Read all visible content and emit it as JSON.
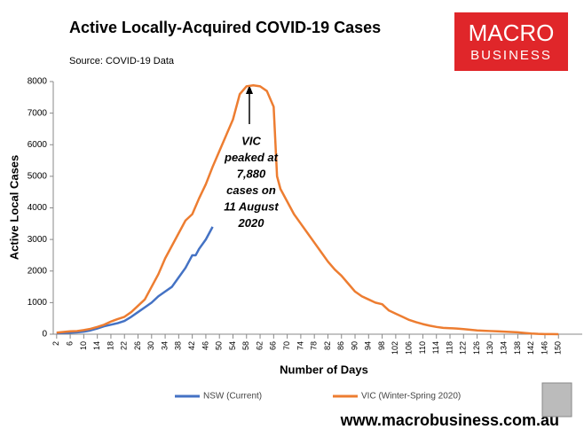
{
  "chart_data": {
    "type": "line",
    "title": "Active Locally-Acquired COVID-19 Cases",
    "subtitle": "Source: COVID-19 Data",
    "logo": [
      "MACRO",
      "BUSINESS"
    ],
    "footer": "www.macrobusiness.com.au",
    "x_label": "Number of Days",
    "y_label": "Active Local Cases",
    "annotation": [
      "VIC",
      "peaked at",
      "7,880",
      "cases on",
      "11 August",
      "2020"
    ],
    "xlim": [
      1,
      157
    ],
    "ylim": [
      0,
      8000
    ],
    "xticks": [
      2,
      6,
      10,
      14,
      18,
      22,
      26,
      30,
      34,
      38,
      42,
      46,
      50,
      54,
      58,
      62,
      66,
      70,
      74,
      78,
      82,
      86,
      90,
      94,
      98,
      102,
      106,
      110,
      114,
      118,
      122,
      126,
      130,
      134,
      138,
      142,
      146,
      150
    ],
    "yticks": [
      0,
      1000,
      2000,
      3000,
      4000,
      5000,
      6000,
      7000,
      8000
    ],
    "series": [
      {
        "name": "NSW (Current)",
        "color": "#4472c4",
        "x": [
          2,
          4,
          6,
          8,
          10,
          12,
          14,
          16,
          18,
          20,
          22,
          24,
          26,
          28,
          30,
          32,
          34,
          36,
          38,
          40,
          42,
          43,
          44,
          46,
          48
        ],
        "values": [
          30,
          40,
          50,
          60,
          80,
          120,
          180,
          250,
          300,
          350,
          420,
          550,
          700,
          850,
          1000,
          1200,
          1350,
          1500,
          1800,
          2100,
          2500,
          2500,
          2700,
          3000,
          3400
        ]
      },
      {
        "name": "VIC (Winter-Spring 2020)",
        "color": "#ed7d31",
        "x": [
          2,
          4,
          6,
          8,
          10,
          12,
          14,
          16,
          18,
          20,
          22,
          24,
          26,
          28,
          30,
          32,
          34,
          36,
          38,
          40,
          42,
          44,
          46,
          48,
          50,
          52,
          54,
          56,
          58,
          60,
          62,
          64,
          66,
          67,
          68,
          70,
          72,
          74,
          76,
          78,
          80,
          82,
          84,
          86,
          88,
          90,
          92,
          94,
          96,
          98,
          100,
          102,
          104,
          106,
          108,
          110,
          112,
          114,
          116,
          118,
          120,
          122,
          124,
          126,
          128,
          130,
          132,
          134,
          136,
          138,
          140,
          142,
          144,
          146,
          148,
          150
        ],
        "values": [
          50,
          70,
          90,
          100,
          130,
          170,
          230,
          300,
          400,
          480,
          550,
          700,
          900,
          1100,
          1500,
          1900,
          2400,
          2800,
          3200,
          3600,
          3800,
          4300,
          4750,
          5300,
          5800,
          6300,
          6800,
          7600,
          7850,
          7880,
          7850,
          7700,
          7200,
          5000,
          4600,
          4200,
          3800,
          3500,
          3200,
          2900,
          2600,
          2300,
          2050,
          1850,
          1600,
          1350,
          1200,
          1100,
          1000,
          950,
          750,
          650,
          550,
          450,
          380,
          320,
          270,
          230,
          200,
          190,
          180,
          160,
          140,
          120,
          110,
          100,
          90,
          80,
          70,
          60,
          40,
          20,
          10,
          5,
          2,
          0
        ]
      }
    ]
  }
}
